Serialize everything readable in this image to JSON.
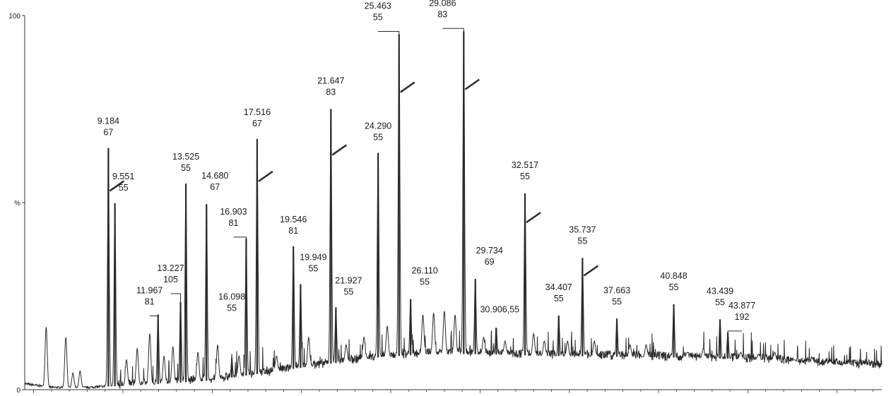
{
  "chart_data": {
    "type": "line",
    "title": "",
    "xlabel": "",
    "ylabel": "",
    "y_tick_labels": [
      "0",
      "%",
      "100"
    ],
    "ylim": [
      0,
      100
    ],
    "xlim": [
      4.5,
      52.5
    ],
    "colors": {
      "trace": "#2b2b2b",
      "axis": "#333333"
    },
    "peaks": [
      {
        "rt": 9.184,
        "mz": "67",
        "y": 64.6
      },
      {
        "rt": 9.551,
        "mz": "55",
        "y": 49.8
      },
      {
        "rt": 11.967,
        "mz": "81",
        "y": 20.1
      },
      {
        "rt": 13.227,
        "mz": "105",
        "y": 23.4
      },
      {
        "rt": 13.525,
        "mz": "55",
        "y": 55.1
      },
      {
        "rt": 14.68,
        "mz": "67",
        "y": 49.6
      },
      {
        "rt": 16.098,
        "mz": "55",
        "y": 8.2
      },
      {
        "rt": 16.903,
        "mz": "81",
        "y": 40.4
      },
      {
        "rt": 17.516,
        "mz": "67",
        "y": 67.0
      },
      {
        "rt": 19.546,
        "mz": "81",
        "y": 38.3
      },
      {
        "rt": 19.949,
        "mz": "55",
        "y": 28.2
      },
      {
        "rt": 21.647,
        "mz": "83",
        "y": 75.0
      },
      {
        "rt": 21.927,
        "mz": "55",
        "y": 22.0
      },
      {
        "rt": 24.29,
        "mz": "55",
        "y": 63.3
      },
      {
        "rt": 25.463,
        "mz": "55",
        "y": 95.0
      },
      {
        "rt": 26.11,
        "mz": "55",
        "y": 24.2
      },
      {
        "rt": 29.086,
        "mz": "83",
        "y": 95.8
      },
      {
        "rt": 29.734,
        "mz": "69",
        "y": 29.6
      },
      {
        "rt": 30.906,
        "mz": "55",
        "y": 16.5
      },
      {
        "rt": 32.517,
        "mz": "55",
        "y": 52.5
      },
      {
        "rt": 34.407,
        "mz": "55",
        "y": 19.8
      },
      {
        "rt": 35.737,
        "mz": "55",
        "y": 35.2
      },
      {
        "rt": 37.663,
        "mz": "55",
        "y": 19.0
      },
      {
        "rt": 40.848,
        "mz": "55",
        "y": 22.8
      },
      {
        "rt": 43.439,
        "mz": "55",
        "y": 18.8
      },
      {
        "rt": 43.877,
        "mz": "192",
        "y": 15.3
      }
    ],
    "minor_peaks": [
      {
        "rt": 5.7,
        "y": 16.7
      },
      {
        "rt": 6.8,
        "y": 14.0
      },
      {
        "rt": 7.2,
        "y": 4.5
      },
      {
        "rt": 7.6,
        "y": 5.0
      },
      {
        "rt": 10.2,
        "y": 8.0
      },
      {
        "rt": 10.8,
        "y": 11.0
      },
      {
        "rt": 11.5,
        "y": 15.0
      },
      {
        "rt": 12.3,
        "y": 9.0
      },
      {
        "rt": 12.8,
        "y": 11.5
      },
      {
        "rt": 14.2,
        "y": 10.0
      },
      {
        "rt": 15.3,
        "y": 12.0
      },
      {
        "rt": 16.5,
        "y": 9.0
      },
      {
        "rt": 18.6,
        "y": 9.0
      },
      {
        "rt": 20.4,
        "y": 14.0
      },
      {
        "rt": 22.5,
        "y": 12.0
      },
      {
        "rt": 23.5,
        "y": 14.0
      },
      {
        "rt": 24.8,
        "y": 17.0
      },
      {
        "rt": 26.8,
        "y": 20.0
      },
      {
        "rt": 27.4,
        "y": 20.5
      },
      {
        "rt": 28.0,
        "y": 21.0
      },
      {
        "rt": 28.6,
        "y": 20.0
      },
      {
        "rt": 30.2,
        "y": 14.0
      },
      {
        "rt": 31.4,
        "y": 13.0
      },
      {
        "rt": 33.0,
        "y": 15.0
      },
      {
        "rt": 33.6,
        "y": 13.0
      },
      {
        "rt": 34.9,
        "y": 13.0
      },
      {
        "rt": 36.4,
        "y": 13.0
      },
      {
        "rt": 38.4,
        "y": 12.0
      },
      {
        "rt": 39.3,
        "y": 12.0
      },
      {
        "rt": 41.6,
        "y": 10.0
      },
      {
        "rt": 42.5,
        "y": 11.0
      },
      {
        "rt": 44.6,
        "y": 10.0
      },
      {
        "rt": 45.6,
        "y": 9.5
      },
      {
        "rt": 46.5,
        "y": 10.0
      },
      {
        "rt": 47.6,
        "y": 8.0
      },
      {
        "rt": 48.6,
        "y": 8.5
      },
      {
        "rt": 49.6,
        "y": 7.5
      },
      {
        "rt": 50.6,
        "y": 7.0
      },
      {
        "rt": 51.6,
        "y": 7.0
      }
    ],
    "baseline": [
      {
        "rt": 4.5,
        "y": 1.5
      },
      {
        "rt": 6.0,
        "y": 0.5
      },
      {
        "rt": 8.0,
        "y": 0.5
      },
      {
        "rt": 9.0,
        "y": 0.8
      },
      {
        "rt": 12.0,
        "y": 1.5
      },
      {
        "rt": 15.0,
        "y": 2.5
      },
      {
        "rt": 18.0,
        "y": 4.5
      },
      {
        "rt": 21.0,
        "y": 6.5
      },
      {
        "rt": 24.0,
        "y": 8.5
      },
      {
        "rt": 27.0,
        "y": 9.5
      },
      {
        "rt": 30.0,
        "y": 9.5
      },
      {
        "rt": 34.0,
        "y": 9.0
      },
      {
        "rt": 38.0,
        "y": 8.8
      },
      {
        "rt": 42.0,
        "y": 8.5
      },
      {
        "rt": 46.0,
        "y": 8.0
      },
      {
        "rt": 50.0,
        "y": 6.8
      },
      {
        "rt": 52.5,
        "y": 6.3
      }
    ],
    "broken_peaks": [
      9.184,
      17.516,
      21.647,
      25.463,
      29.086,
      32.517,
      35.737
    ],
    "grid": false,
    "legend": "none"
  }
}
